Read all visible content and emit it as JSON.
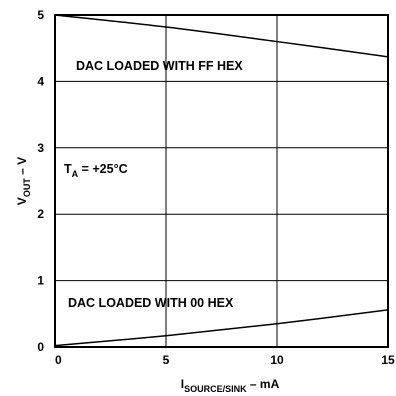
{
  "chart_data": {
    "type": "line",
    "xlabel_main": "I",
    "xlabel_sub": "SOURCE/SINK",
    "xlabel_unit": " – mA",
    "ylabel_main": "V",
    "ylabel_sub": "OUT",
    "ylabel_unit": " – V",
    "xlim": [
      0,
      15
    ],
    "ylim": [
      0,
      5
    ],
    "x_ticks": [
      "0",
      "5",
      "10",
      "15"
    ],
    "y_ticks": [
      "0",
      "1",
      "2",
      "3",
      "4",
      "5"
    ],
    "grid": true,
    "series": [
      {
        "name": "DAC LOADED WITH FF HEX",
        "x": [
          0,
          5,
          10,
          15
        ],
        "y": [
          5.0,
          4.82,
          4.6,
          4.37
        ]
      },
      {
        "name": "DAC LOADED WITH 00 HEX",
        "x": [
          0,
          5,
          10,
          15
        ],
        "y": [
          0.02,
          0.17,
          0.35,
          0.56
        ]
      }
    ],
    "condition_main": "T",
    "condition_sub": "A",
    "condition_rest": " = +25°C"
  }
}
